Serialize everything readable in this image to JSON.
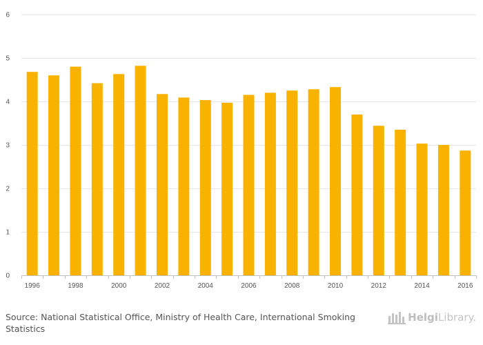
{
  "chart_data": {
    "type": "bar",
    "categories": [
      "1996",
      "1997",
      "1998",
      "1999",
      "2000",
      "2001",
      "2002",
      "2003",
      "2004",
      "2005",
      "2006",
      "2007",
      "2008",
      "2009",
      "2010",
      "2011",
      "2012",
      "2013",
      "2014",
      "2015",
      "2016"
    ],
    "x_tick_labels": [
      "1996",
      "1998",
      "2000",
      "2002",
      "2004",
      "2006",
      "2008",
      "2010",
      "2012",
      "2014",
      "2016"
    ],
    "values": [
      4.68,
      4.6,
      4.8,
      4.42,
      4.63,
      4.82,
      4.17,
      4.09,
      4.03,
      3.97,
      4.15,
      4.2,
      4.25,
      4.28,
      4.33,
      3.7,
      3.44,
      3.35,
      3.03,
      3.0,
      2.87
    ],
    "ylim": [
      0,
      6
    ],
    "y_ticks": [
      0,
      1,
      2,
      3,
      4,
      5,
      6
    ],
    "title": "",
    "xlabel": "",
    "ylabel": "",
    "bar_color": "#f9b200",
    "grid": true
  },
  "footer": {
    "source_prefix": "Source:",
    "source_text": "National Statistical Office, Ministry of Health Care, International Smoking Statistics"
  },
  "logo": {
    "icon": "helgi-library-logo-icon",
    "text_strong": "Helgi",
    "text_light": "Library."
  }
}
